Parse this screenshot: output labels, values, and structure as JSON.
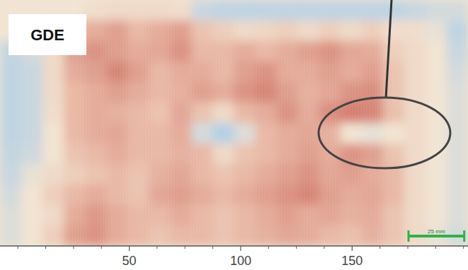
{
  "chart_data": {
    "type": "heatmap",
    "title": "GDE",
    "xlim": [
      -8,
      202
    ],
    "xticks": [
      50,
      100,
      150
    ],
    "minor_xticks": [
      0,
      12.5,
      25,
      37.5,
      62.5,
      75,
      87.5,
      112.5,
      125,
      137.5,
      162.5,
      175,
      187.5,
      200
    ],
    "cells": [
      [
        35,
        35,
        35,
        35,
        38,
        40,
        40,
        40,
        38,
        15,
        10,
        10,
        10,
        10,
        10,
        10,
        10,
        10,
        10,
        15,
        20,
        20
      ],
      [
        35,
        38,
        45,
        55,
        60,
        65,
        55,
        60,
        65,
        50,
        45,
        40,
        42,
        45,
        40,
        45,
        40,
        45,
        38,
        38,
        30,
        10
      ],
      [
        12,
        20,
        40,
        65,
        70,
        65,
        60,
        62,
        70,
        55,
        55,
        60,
        55,
        60,
        65,
        70,
        62,
        60,
        45,
        40,
        35,
        15
      ],
      [
        10,
        15,
        40,
        60,
        65,
        75,
        65,
        55,
        60,
        60,
        55,
        65,
        70,
        60,
        60,
        65,
        60,
        65,
        50,
        40,
        35,
        20
      ],
      [
        10,
        15,
        40,
        55,
        60,
        65,
        60,
        55,
        58,
        65,
        60,
        70,
        75,
        65,
        58,
        62,
        70,
        72,
        50,
        40,
        35,
        25
      ],
      [
        10,
        15,
        38,
        55,
        60,
        58,
        55,
        50,
        62,
        50,
        40,
        55,
        60,
        70,
        60,
        72,
        78,
        75,
        52,
        40,
        35,
        25
      ],
      [
        10,
        15,
        35,
        55,
        60,
        62,
        55,
        55,
        60,
        20,
        5,
        25,
        55,
        60,
        62,
        58,
        35,
        30,
        35,
        40,
        35,
        25
      ],
      [
        12,
        18,
        35,
        50,
        55,
        60,
        55,
        55,
        58,
        55,
        40,
        50,
        55,
        60,
        65,
        60,
        70,
        65,
        50,
        40,
        35,
        25
      ],
      [
        15,
        30,
        40,
        45,
        50,
        55,
        50,
        58,
        62,
        55,
        50,
        55,
        60,
        65,
        70,
        62,
        65,
        60,
        55,
        40,
        35,
        25
      ],
      [
        20,
        35,
        45,
        55,
        60,
        55,
        50,
        62,
        65,
        60,
        55,
        60,
        65,
        70,
        75,
        65,
        60,
        62,
        55,
        40,
        35,
        25
      ],
      [
        25,
        35,
        40,
        60,
        68,
        60,
        55,
        55,
        60,
        55,
        50,
        55,
        60,
        65,
        60,
        62,
        58,
        60,
        50,
        40,
        35,
        25
      ],
      [
        25,
        35,
        45,
        65,
        70,
        60,
        55,
        50,
        55,
        55,
        50,
        55,
        58,
        62,
        60,
        55,
        52,
        58,
        50,
        40,
        30,
        20
      ]
    ],
    "scale_bar": {
      "length": 25,
      "label": "25 mm"
    }
  }
}
